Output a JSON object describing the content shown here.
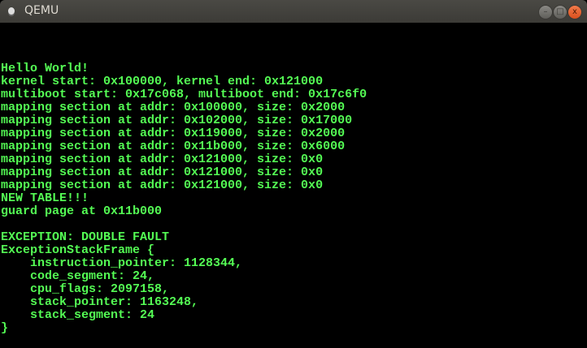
{
  "window": {
    "title": "QEMU",
    "minimize": "–",
    "maximize": "□",
    "close": "x"
  },
  "colors": {
    "text": "#54fc54",
    "background": "#000000",
    "close_button": "#e2582a"
  },
  "lines": [
    "",
    "",
    "",
    "Hello World!",
    "kernel start: 0x100000, kernel end: 0x121000",
    "multiboot start: 0x17c068, multiboot end: 0x17c6f0",
    "mapping section at addr: 0x100000, size: 0x2000",
    "mapping section at addr: 0x102000, size: 0x17000",
    "mapping section at addr: 0x119000, size: 0x2000",
    "mapping section at addr: 0x11b000, size: 0x6000",
    "mapping section at addr: 0x121000, size: 0x0",
    "mapping section at addr: 0x121000, size: 0x0",
    "mapping section at addr: 0x121000, size: 0x0",
    "NEW TABLE!!!",
    "guard page at 0x11b000",
    "",
    "EXCEPTION: DOUBLE FAULT",
    "ExceptionStackFrame {",
    "    instruction_pointer: 1128344,",
    "    code_segment: 24,",
    "    cpu_flags: 2097158,",
    "    stack_pointer: 1163248,",
    "    stack_segment: 24",
    "}"
  ]
}
